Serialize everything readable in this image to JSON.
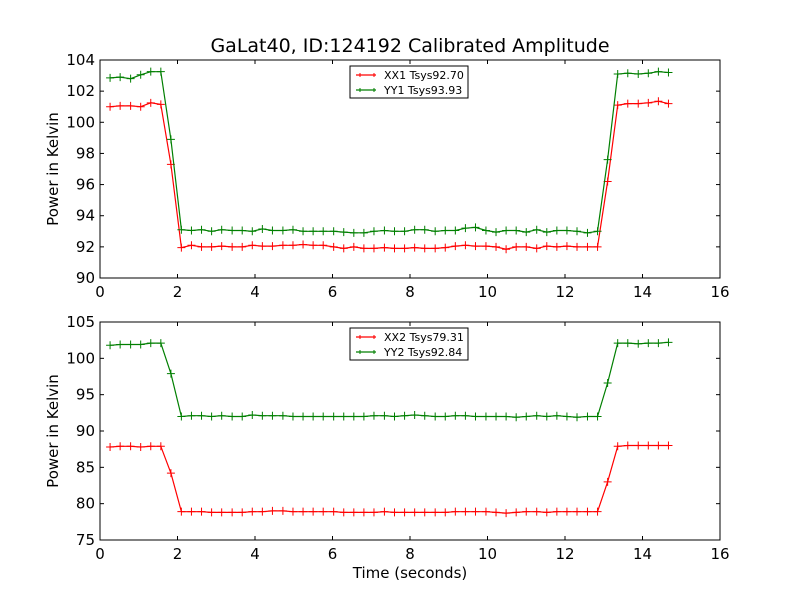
{
  "title": "GaLat40, ID:124192 Calibrated Amplitude",
  "chart_data": [
    {
      "type": "line",
      "title": "GaLat40, ID:124192 Calibrated Amplitude",
      "xlabel": "",
      "ylabel": "Power in Kelvin",
      "xlim": [
        0,
        16
      ],
      "ylim": [
        90,
        104
      ],
      "xticks": [
        0,
        2,
        4,
        6,
        8,
        10,
        12,
        14,
        16
      ],
      "yticks": [
        90,
        92,
        94,
        96,
        98,
        100,
        102,
        104
      ],
      "grid": false,
      "legend_position": "top-center",
      "series": [
        {
          "name": "XX1 Tsys92.70",
          "color": "#ff0000",
          "x": [
            0.26,
            0.52,
            0.79,
            1.05,
            1.31,
            1.57,
            1.83,
            2.1,
            2.36,
            2.62,
            2.88,
            3.14,
            3.41,
            3.67,
            3.93,
            4.19,
            4.45,
            4.72,
            4.98,
            5.24,
            5.5,
            5.76,
            6.03,
            6.29,
            6.55,
            6.81,
            7.07,
            7.34,
            7.6,
            7.86,
            8.12,
            8.38,
            8.65,
            8.91,
            9.17,
            9.43,
            9.69,
            9.96,
            10.22,
            10.48,
            10.74,
            11.0,
            11.27,
            11.53,
            11.79,
            12.05,
            12.31,
            12.58,
            12.84,
            13.1,
            13.36,
            13.62,
            13.89,
            14.15,
            14.41,
            14.67
          ],
          "values": [
            101.0,
            101.05,
            101.05,
            101.0,
            101.25,
            101.15,
            97.3,
            91.95,
            92.1,
            92.0,
            92.0,
            92.05,
            92.0,
            92.0,
            92.1,
            92.05,
            92.05,
            92.1,
            92.1,
            92.15,
            92.1,
            92.1,
            92.0,
            91.9,
            92.0,
            91.9,
            91.9,
            91.95,
            91.9,
            91.9,
            91.95,
            91.9,
            91.9,
            91.95,
            92.05,
            92.1,
            92.05,
            92.05,
            92.0,
            91.85,
            92.0,
            92.0,
            91.9,
            92.05,
            92.0,
            92.05,
            92.0,
            92.0,
            92.0,
            96.2,
            101.1,
            101.2,
            101.2,
            101.25,
            101.35,
            101.2
          ]
        },
        {
          "name": "YY1 Tsys93.93",
          "color": "#007f00",
          "x": [
            0.26,
            0.52,
            0.79,
            1.05,
            1.31,
            1.57,
            1.83,
            2.1,
            2.36,
            2.62,
            2.88,
            3.14,
            3.41,
            3.67,
            3.93,
            4.19,
            4.45,
            4.72,
            4.98,
            5.24,
            5.5,
            5.76,
            6.03,
            6.29,
            6.55,
            6.81,
            7.07,
            7.34,
            7.6,
            7.86,
            8.12,
            8.38,
            8.65,
            8.91,
            9.17,
            9.43,
            9.69,
            9.96,
            10.22,
            10.48,
            10.74,
            11.0,
            11.27,
            11.53,
            11.79,
            12.05,
            12.31,
            12.58,
            12.84,
            13.1,
            13.36,
            13.62,
            13.89,
            14.15,
            14.41,
            14.67
          ],
          "values": [
            102.85,
            102.9,
            102.8,
            103.05,
            103.25,
            103.25,
            98.9,
            93.1,
            93.05,
            93.1,
            93.0,
            93.1,
            93.05,
            93.05,
            93.0,
            93.15,
            93.05,
            93.05,
            93.1,
            93.0,
            93.0,
            93.0,
            93.0,
            92.95,
            92.9,
            92.9,
            93.0,
            93.05,
            93.0,
            93.0,
            93.1,
            93.1,
            93.0,
            93.05,
            93.05,
            93.2,
            93.25,
            93.05,
            92.95,
            93.05,
            93.05,
            92.95,
            93.1,
            92.95,
            93.05,
            93.05,
            93.0,
            92.9,
            93.0,
            97.6,
            103.1,
            103.15,
            103.1,
            103.15,
            103.25,
            103.2
          ]
        }
      ]
    },
    {
      "type": "line",
      "title": "",
      "xlabel": "Time (seconds)",
      "ylabel": "Power in Kelvin",
      "xlim": [
        0,
        16
      ],
      "ylim": [
        75,
        105
      ],
      "xticks": [
        0,
        2,
        4,
        6,
        8,
        10,
        12,
        14,
        16
      ],
      "yticks": [
        75,
        80,
        85,
        90,
        95,
        100,
        105
      ],
      "grid": false,
      "legend_position": "top-center",
      "series": [
        {
          "name": "XX2 Tsys79.31",
          "color": "#ff0000",
          "x": [
            0.26,
            0.52,
            0.79,
            1.05,
            1.31,
            1.57,
            1.83,
            2.1,
            2.36,
            2.62,
            2.88,
            3.14,
            3.41,
            3.67,
            3.93,
            4.19,
            4.45,
            4.72,
            4.98,
            5.24,
            5.5,
            5.76,
            6.03,
            6.29,
            6.55,
            6.81,
            7.07,
            7.34,
            7.6,
            7.86,
            8.12,
            8.38,
            8.65,
            8.91,
            9.17,
            9.43,
            9.69,
            9.96,
            10.22,
            10.48,
            10.74,
            11.0,
            11.27,
            11.53,
            11.79,
            12.05,
            12.31,
            12.58,
            12.84,
            13.1,
            13.36,
            13.62,
            13.89,
            14.15,
            14.41,
            14.67
          ],
          "values": [
            87.8,
            87.9,
            87.9,
            87.8,
            87.9,
            87.9,
            84.2,
            78.9,
            78.9,
            78.9,
            78.8,
            78.8,
            78.8,
            78.8,
            78.9,
            78.9,
            79.0,
            79.0,
            78.9,
            78.9,
            78.9,
            78.9,
            78.9,
            78.8,
            78.8,
            78.8,
            78.8,
            78.9,
            78.8,
            78.8,
            78.8,
            78.8,
            78.8,
            78.8,
            78.9,
            78.9,
            78.9,
            78.9,
            78.8,
            78.7,
            78.8,
            78.9,
            78.9,
            78.8,
            78.9,
            78.9,
            78.9,
            78.9,
            78.9,
            83.0,
            87.9,
            88.0,
            88.0,
            88.0,
            88.0,
            88.0
          ]
        },
        {
          "name": "YY2 Tsys92.84",
          "color": "#007f00",
          "x": [
            0.26,
            0.52,
            0.79,
            1.05,
            1.31,
            1.57,
            1.83,
            2.1,
            2.36,
            2.62,
            2.88,
            3.14,
            3.41,
            3.67,
            3.93,
            4.19,
            4.45,
            4.72,
            4.98,
            5.24,
            5.5,
            5.76,
            6.03,
            6.29,
            6.55,
            6.81,
            7.07,
            7.34,
            7.6,
            7.86,
            8.12,
            8.38,
            8.65,
            8.91,
            9.17,
            9.43,
            9.69,
            9.96,
            10.22,
            10.48,
            10.74,
            11.0,
            11.27,
            11.53,
            11.79,
            12.05,
            12.31,
            12.58,
            12.84,
            13.1,
            13.36,
            13.62,
            13.89,
            14.15,
            14.41,
            14.67
          ],
          "values": [
            101.8,
            101.9,
            101.9,
            101.9,
            102.1,
            102.1,
            97.9,
            92.0,
            92.1,
            92.1,
            92.0,
            92.1,
            92.0,
            92.0,
            92.2,
            92.1,
            92.1,
            92.1,
            92.0,
            92.0,
            92.0,
            92.0,
            92.0,
            92.0,
            92.0,
            92.0,
            92.1,
            92.1,
            92.0,
            92.1,
            92.2,
            92.1,
            92.0,
            92.0,
            92.1,
            92.1,
            92.0,
            92.0,
            92.0,
            92.0,
            91.9,
            92.0,
            92.1,
            92.0,
            92.1,
            92.0,
            91.9,
            92.0,
            92.0,
            96.6,
            102.1,
            102.1,
            102.0,
            102.1,
            102.1,
            102.2
          ]
        }
      ]
    }
  ]
}
